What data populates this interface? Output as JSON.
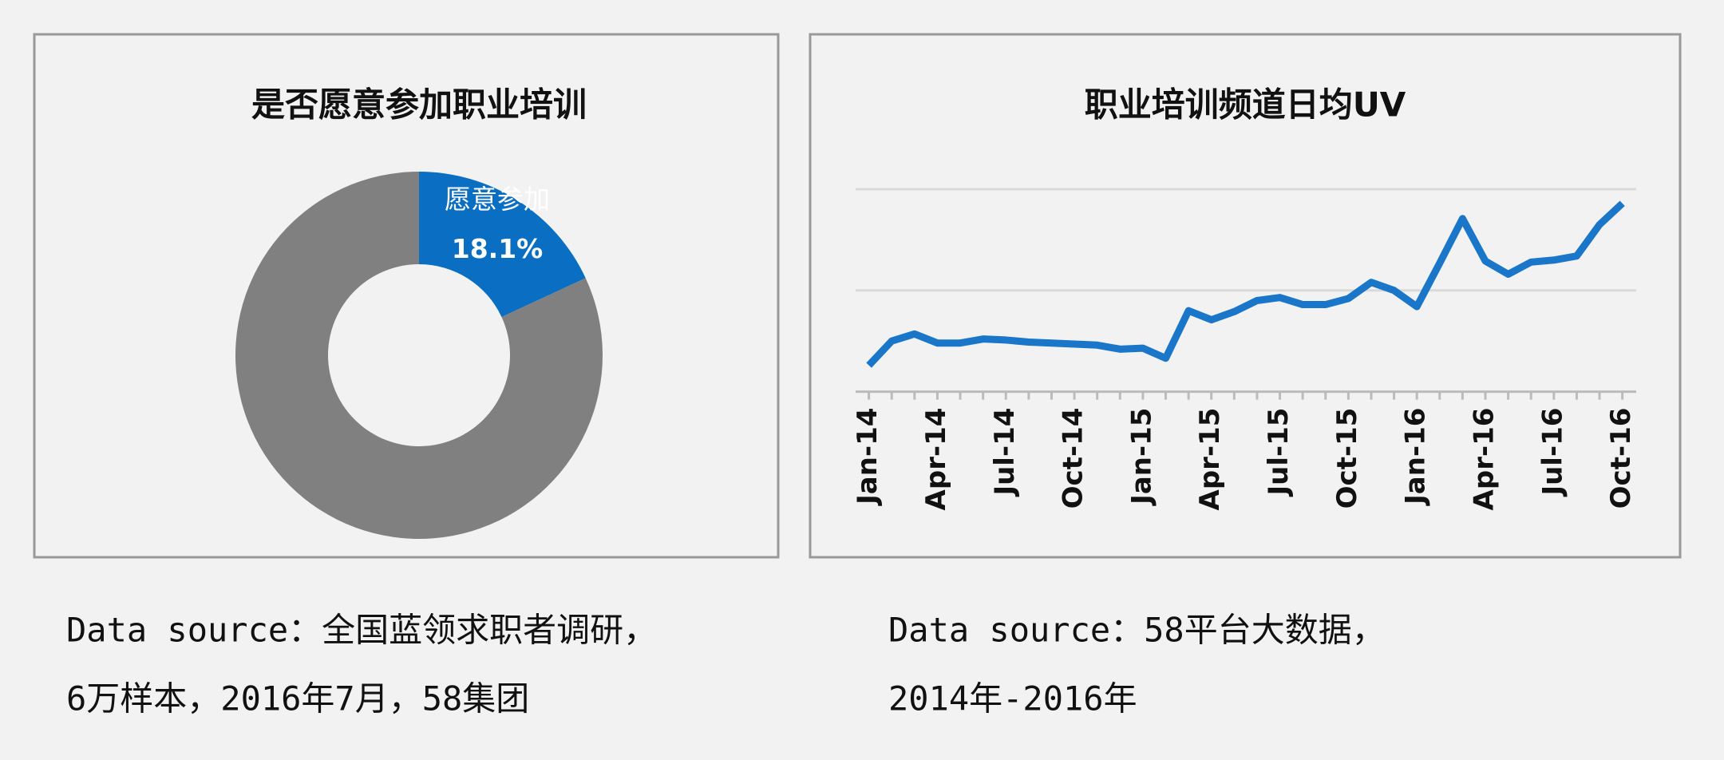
{
  "chart_data": [
    {
      "type": "donut",
      "title": "是否愿意参加职业培训",
      "categories": [
        "愿意参加",
        null
      ],
      "values": [
        18.1,
        81.9
      ],
      "value_labels": [
        "18.1%",
        null
      ],
      "colors": [
        "#0a6fc2",
        "#808080"
      ]
    },
    {
      "type": "line",
      "title": "职业培训频道日均UV",
      "categories": [
        "Jan-14",
        null,
        null,
        "Apr-14",
        null,
        null,
        "Jul-14",
        null,
        null,
        "Oct-14",
        null,
        null,
        "Jan-15",
        null,
        null,
        "Apr-15",
        null,
        null,
        "Jul-15",
        null,
        null,
        "Oct-15",
        null,
        null,
        "Jan-16",
        null,
        null,
        "Apr-16",
        null,
        null,
        "Jul-16",
        null,
        null,
        "Oct-16"
      ],
      "series": [
        {
          "color": "#1a76c8",
          "values": [
            0.26,
            0.5,
            0.57,
            0.48,
            0.48,
            0.52,
            0.51,
            0.49,
            0.48,
            0.47,
            0.46,
            0.42,
            0.43,
            0.33,
            0.8,
            0.71,
            0.79,
            0.9,
            0.93,
            0.86,
            0.86,
            0.92,
            1.08,
            1.0,
            0.84,
            1.27,
            1.71,
            1.29,
            1.16,
            1.28,
            1.3,
            1.34,
            1.65,
            1.86
          ]
        }
      ],
      "ylim": [
        0,
        2
      ],
      "yticks": [
        0,
        1,
        2
      ],
      "grid": true
    }
  ],
  "captions": [
    [
      "Data source：全国蓝领求职者调研，",
      "6万样本，2016年7月，58集团"
    ],
    [
      "Data source：58平台大数据，",
      "2014年-2016年"
    ]
  ]
}
